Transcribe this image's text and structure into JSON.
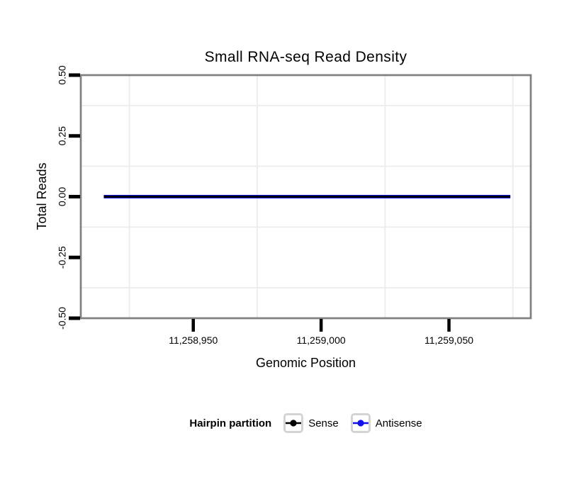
{
  "title": "Small RNA-seq Read Density",
  "chart_data": {
    "type": "line",
    "title": "Small RNA-seq Read Density",
    "xlabel": "Genomic Position",
    "ylabel": "Total Reads",
    "xlim": [
      11258906,
      11259082
    ],
    "ylim": [
      -0.5,
      0.5
    ],
    "x_ticks": [
      11258950,
      11259000,
      11259050
    ],
    "x_tick_labels": [
      "11,258,950",
      "11,259,000",
      "11,259,050"
    ],
    "x_minor_gridlines": [
      11258925,
      11258975,
      11259025,
      11259075
    ],
    "y_ticks": [
      0.5,
      0.25,
      0,
      -0.25,
      -0.5
    ],
    "y_tick_labels": [
      "0.50",
      "0.25",
      "0.00",
      "-0.25",
      "-0.50"
    ],
    "y_tick_labels_rotated": true,
    "y_minor_gridlines": [
      0.375,
      0.125,
      -0.125,
      -0.375
    ],
    "grid": "minor-only",
    "legend_position": "bottom",
    "series": [
      {
        "name": "Sense",
        "color": "#000000",
        "x": [
          11258915,
          11259074
        ],
        "y": [
          0,
          0
        ]
      },
      {
        "name": "Antisense",
        "color": "#1212EE",
        "x": [
          11258915,
          11259074
        ],
        "y": [
          0,
          0
        ]
      }
    ]
  },
  "legend": {
    "title": "Hairpin partition",
    "items": [
      {
        "label": "Sense",
        "color": "#000000"
      },
      {
        "label": "Antisense",
        "color": "#1212EE"
      }
    ]
  },
  "colors": {
    "background": "#ffffff",
    "panel_border": "#808080",
    "tick": "#000000",
    "minor_grid": "#ececec",
    "legend_key_border": "#d4d4d4",
    "text": "#000000"
  }
}
